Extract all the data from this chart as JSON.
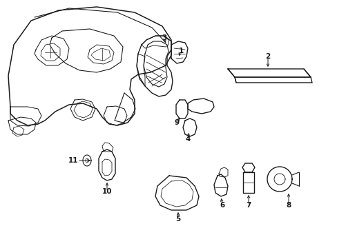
{
  "background_color": "#ffffff",
  "line_color": "#1a1a1a",
  "line_width": 0.8,
  "figsize": [
    4.89,
    3.6
  ],
  "dpi": 100
}
